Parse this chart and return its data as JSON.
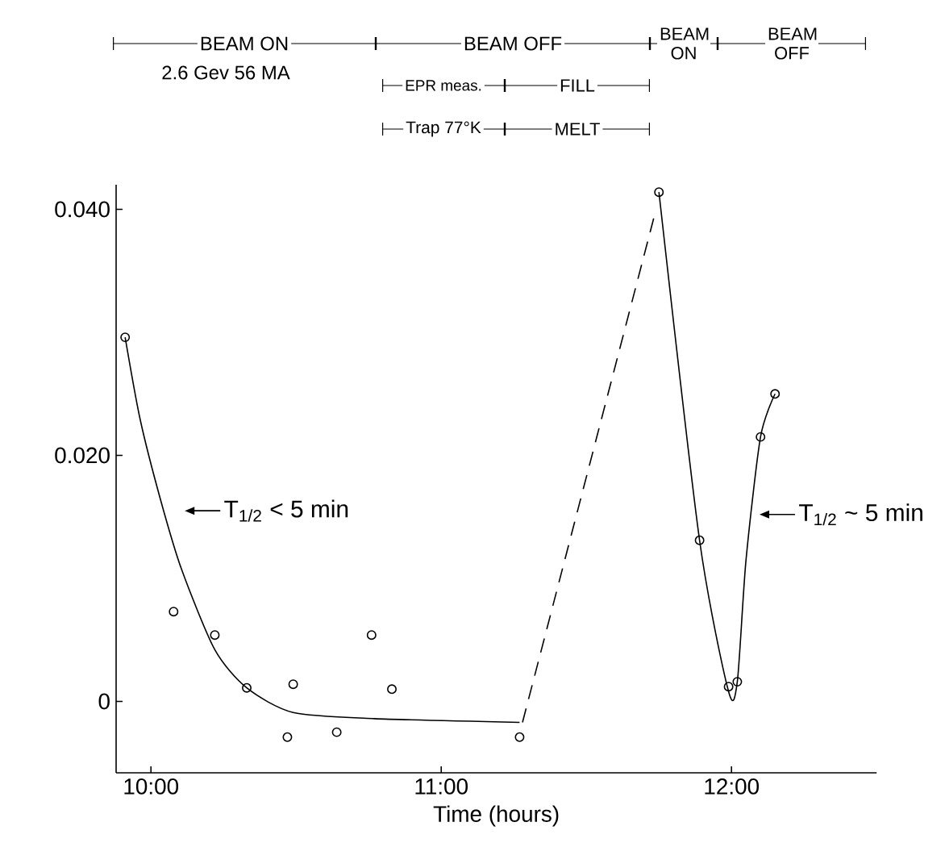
{
  "chart_data": {
    "type": "scatter",
    "xlabel": "Time (hours)",
    "xlim": [
      9.88,
      12.5
    ],
    "ylim": [
      -0.0058,
      0.042
    ],
    "xticks": [
      {
        "value": 10,
        "label": "10:00"
      },
      {
        "value": 11,
        "label": "11:00"
      },
      {
        "value": 12,
        "label": "12:00"
      }
    ],
    "yticks": [
      0,
      {
        "value": 0.02,
        "label": "0.020"
      },
      {
        "value": 0.04,
        "label": "0.040"
      }
    ],
    "series": [
      {
        "marker": "circle",
        "color": "#000000",
        "x": [
          9.911,
          10.078,
          10.22,
          10.33,
          10.49,
          10.76,
          10.83,
          10.47,
          10.64,
          11.27,
          11.75,
          11.89,
          11.99,
          12.02,
          12.1,
          12.15
        ],
        "values": [
          0.0296,
          0.0073,
          0.0054,
          0.0011,
          0.0014,
          0.0054,
          0.001,
          -0.0029,
          -0.0025,
          -0.0029,
          0.0414,
          0.0131,
          0.0012,
          0.0016,
          0.0215,
          0.025
        ]
      },
      {
        "type": "line",
        "marker": "none",
        "line_style": "solid",
        "color": "#000000",
        "x": [
          9.911,
          9.963,
          10.033,
          10.106,
          10.22,
          10.33,
          10.49,
          10.77,
          11.27
        ],
        "values": [
          0.0296,
          0.0229,
          0.0164,
          0.0107,
          0.0042,
          0.0011,
          -0.0009,
          -0.0014,
          -0.0017
        ]
      },
      {
        "type": "line",
        "marker": "none",
        "line_style": "dashed",
        "color": "#000000",
        "x": [
          11.28,
          11.74
        ],
        "values": [
          -0.0017,
          0.04
        ]
      },
      {
        "type": "line",
        "marker": "none",
        "line_style": "solid",
        "color": "#000000",
        "x": [
          11.75,
          11.89,
          11.99,
          12.02,
          12.05,
          12.1,
          12.15
        ],
        "values": [
          0.0414,
          0.0131,
          0.0008,
          0.0016,
          0.0115,
          0.0215,
          0.025
        ]
      }
    ],
    "annotations": [
      "BEAM ON",
      "BEAM OFF",
      "BEAM ON",
      "BEAM OFF",
      "2.6 Gev 56 MA",
      "EPR meas.",
      "FILL",
      "Trap 77°K",
      "MELT",
      "T$_{1/2}$ < 5 min",
      "T$_{1/2}$ ~ 5 min"
    ]
  }
}
